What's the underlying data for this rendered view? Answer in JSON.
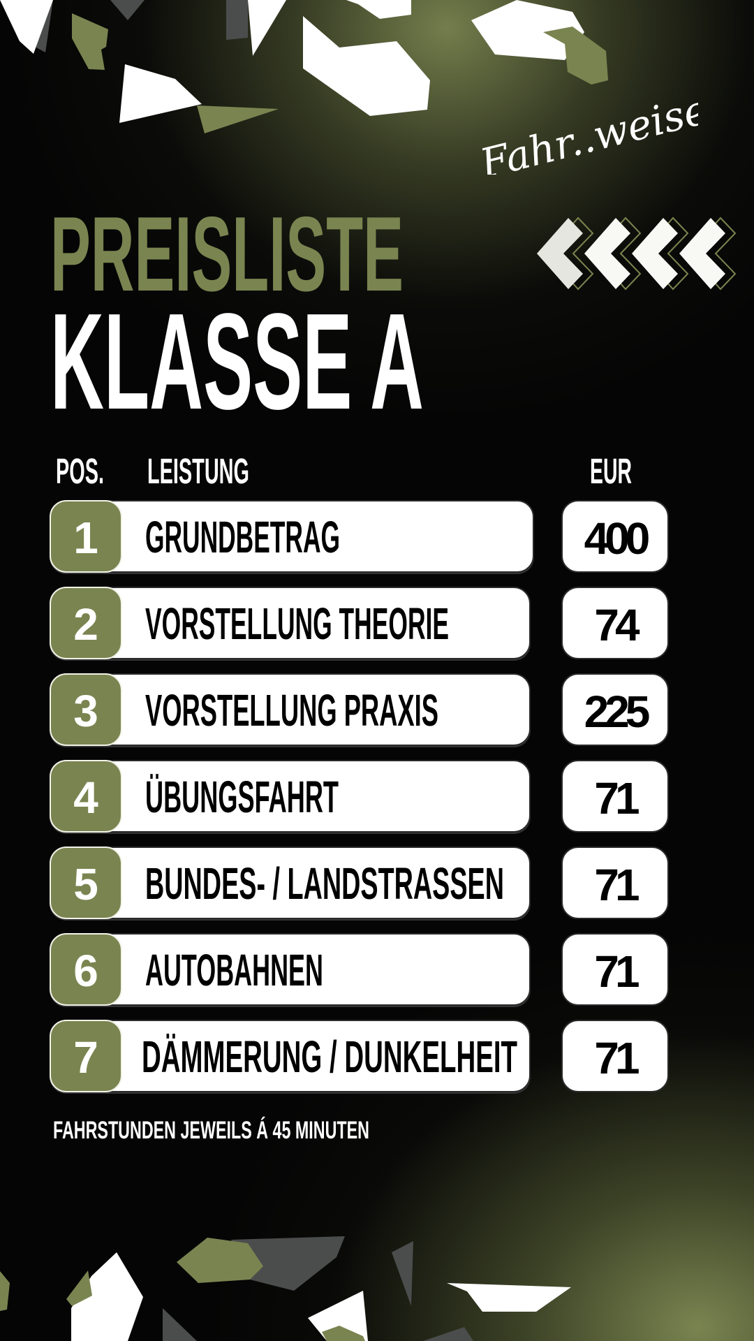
{
  "brand": {
    "logo_text": "Fahr..weise!"
  },
  "colors": {
    "accent_green": "#7a8450",
    "background": "#050505",
    "card": "#ffffff"
  },
  "title": {
    "line1": "PREISLISTE",
    "line2": "KLASSE A"
  },
  "decoration": {
    "chevrons": "chevron-left-icon x4"
  },
  "table": {
    "headers": {
      "pos": "POS.",
      "service": "LEISTUNG",
      "price": "EUR"
    },
    "rows": [
      {
        "pos": "1",
        "service": "GRUNDBETRAG",
        "price": "400"
      },
      {
        "pos": "2",
        "service": "VORSTELLUNG THEORIE",
        "price": "74"
      },
      {
        "pos": "3",
        "service": "VORSTELLUNG PRAXIS",
        "price": "225"
      },
      {
        "pos": "4",
        "service": "ÜBUNGSFAHRT",
        "price": "71"
      },
      {
        "pos": "5",
        "service": "BUNDES- / LANDSTRASSEN",
        "price": "71"
      },
      {
        "pos": "6",
        "service": "AUTOBAHNEN",
        "price": "71"
      },
      {
        "pos": "7",
        "service": "DÄMMERUNG / DUNKELHEIT",
        "price": "71"
      }
    ]
  },
  "footer": {
    "note": "FAHRSTUNDEN JEWEILS Á 45 MINUTEN"
  }
}
